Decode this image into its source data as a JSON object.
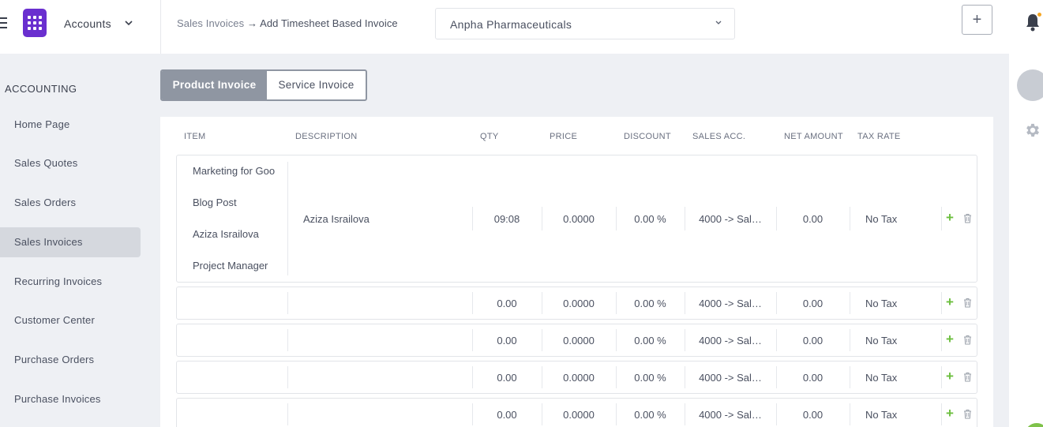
{
  "header": {
    "app_name": "Accounts",
    "breadcrumb_parent": "Sales Invoices",
    "breadcrumb_arrow": "→",
    "breadcrumb_current": "Add Timesheet Based Invoice",
    "company": "Anpha Pharmaceuticals",
    "add_label": "+"
  },
  "sidebar": {
    "section_title": "ACCOUNTING",
    "items": [
      {
        "label": "Home Page"
      },
      {
        "label": "Sales Quotes"
      },
      {
        "label": "Sales Orders"
      },
      {
        "label": "Sales Invoices",
        "active": true
      },
      {
        "label": "Recurring Invoices"
      },
      {
        "label": "Customer Center"
      },
      {
        "label": "Purchase Orders"
      },
      {
        "label": "Purchase Invoices"
      }
    ]
  },
  "invoice_type": {
    "options": [
      "Product Invoice",
      "Service Invoice"
    ],
    "selected": "Product Invoice"
  },
  "table": {
    "columns": [
      "ITEM",
      "DESCRIPTION",
      "QTY",
      "PRICE",
      "DISCOUNT",
      "SALES ACC.",
      "NET AMOUNT",
      "TAX RATE"
    ],
    "rows": [
      {
        "items": [
          "Marketing for Goo",
          "Blog Post",
          "Aziza Israilova",
          "Project Manager"
        ],
        "description": "Aziza Israilova",
        "qty": "09:08",
        "price": "0.0000",
        "discount": "0.00 %",
        "sales_acc": "4000 -> Sal…",
        "net_amount": "0.00",
        "tax_rate": "No Tax"
      },
      {
        "items": [],
        "description": "",
        "qty": "0.00",
        "price": "0.0000",
        "discount": "0.00 %",
        "sales_acc": "4000 -> Sal…",
        "net_amount": "0.00",
        "tax_rate": "No Tax"
      },
      {
        "items": [],
        "description": "",
        "qty": "0.00",
        "price": "0.0000",
        "discount": "0.00 %",
        "sales_acc": "4000 -> Sal…",
        "net_amount": "0.00",
        "tax_rate": "No Tax"
      },
      {
        "items": [],
        "description": "",
        "qty": "0.00",
        "price": "0.0000",
        "discount": "0.00 %",
        "sales_acc": "4000 -> Sal…",
        "net_amount": "0.00",
        "tax_rate": "No Tax"
      },
      {
        "items": [],
        "description": "",
        "qty": "0.00",
        "price": "0.0000",
        "discount": "0.00 %",
        "sales_acc": "4000 -> Sal…",
        "net_amount": "0.00",
        "tax_rate": "No Tax"
      }
    ],
    "add_row_label": "+"
  },
  "icons": {
    "menu": "hamburger-icon",
    "logo": "app-grid-icon",
    "notifications": "bell-icon",
    "settings": "gear-icon",
    "delete": "trash-icon"
  },
  "colors": {
    "brand": "#6a2fcf",
    "toggle_active": "#8f96a2",
    "add_green": "#6cbf3f",
    "notification_dot": "#f5a623"
  }
}
